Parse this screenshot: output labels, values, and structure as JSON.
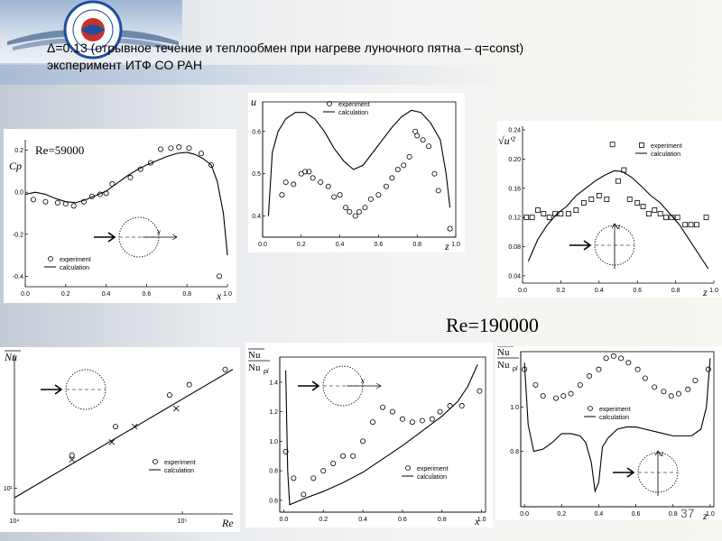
{
  "slide": {
    "title_line1": "Δ=0.13 (отрывное течение и теплообмен при нагреве луночного пятна – q=const)",
    "title_line2": "эксперимент ИТФ СО РАН",
    "re_label": "Re=190000",
    "page_number": "37"
  },
  "legend": {
    "experiment": "experiment",
    "calculation": "calculation"
  },
  "colors": {
    "background": "#f4f4f2",
    "logo_blue": "#1e4f9c",
    "plot_ink": "#000000"
  },
  "chart_data": [
    {
      "id": "cp",
      "type": "scatter",
      "title": "",
      "annotation": "Re=59000",
      "xlabel": "x",
      "ylabel": "Cp",
      "xlim": [
        0,
        1
      ],
      "ylim": [
        -0.45,
        0.25
      ],
      "inset": "circle-x",
      "xticks": [
        0,
        0.2,
        0.4,
        0.6,
        0.8,
        1.0
      ],
      "xtick_labels": [
        "0.0",
        "0.2",
        "0.4",
        "0.6",
        "0.8",
        "1.0"
      ],
      "yticks": [
        0.2,
        0,
        -0.2,
        -0.4
      ],
      "ytick_labels": [
        "0.2",
        "0.0",
        "-0.2",
        "-0.4"
      ],
      "experiment": [
        [
          0.04,
          -0.035
        ],
        [
          0.1,
          -0.045
        ],
        [
          0.16,
          -0.05
        ],
        [
          0.2,
          -0.055
        ],
        [
          0.24,
          -0.065
        ],
        [
          0.29,
          -0.045
        ],
        [
          0.33,
          -0.02
        ],
        [
          0.37,
          -0.01
        ],
        [
          0.4,
          -0.005
        ],
        [
          0.43,
          0.04
        ],
        [
          0.52,
          0.07
        ],
        [
          0.57,
          0.11
        ],
        [
          0.62,
          0.14
        ],
        [
          0.67,
          0.205
        ],
        [
          0.72,
          0.21
        ],
        [
          0.76,
          0.215
        ],
        [
          0.81,
          0.21
        ],
        [
          0.87,
          0.185
        ],
        [
          0.92,
          0.13
        ],
        [
          0.96,
          -0.4
        ]
      ],
      "calculation": [
        [
          0.0,
          -0.01
        ],
        [
          0.05,
          0.0
        ],
        [
          0.1,
          -0.01
        ],
        [
          0.15,
          -0.03
        ],
        [
          0.2,
          -0.045
        ],
        [
          0.25,
          -0.05
        ],
        [
          0.3,
          -0.035
        ],
        [
          0.35,
          -0.015
        ],
        [
          0.4,
          0.005
        ],
        [
          0.45,
          0.04
        ],
        [
          0.5,
          0.075
        ],
        [
          0.55,
          0.105
        ],
        [
          0.6,
          0.13
        ],
        [
          0.65,
          0.15
        ],
        [
          0.7,
          0.17
        ],
        [
          0.75,
          0.185
        ],
        [
          0.8,
          0.19
        ],
        [
          0.84,
          0.18
        ],
        [
          0.88,
          0.16
        ],
        [
          0.92,
          0.13
        ],
        [
          0.95,
          0.05
        ],
        [
          0.98,
          -0.1
        ],
        [
          1.0,
          -0.3
        ]
      ]
    },
    {
      "id": "u",
      "type": "scatter",
      "title": "",
      "xlabel": "z",
      "ylabel": "u",
      "xlim": [
        0,
        1
      ],
      "ylim": [
        0.35,
        0.67
      ],
      "inset": "",
      "xticks": [
        0,
        0.2,
        0.4,
        0.6,
        0.8,
        1.0
      ],
      "xtick_labels": [
        "0.0",
        "0.2",
        "0.4",
        "0.6",
        "0.8",
        "1.0"
      ],
      "yticks": [
        0.4,
        0.5,
        0.6
      ],
      "ytick_labels": [
        "0.4",
        "0.5",
        "0.6"
      ],
      "experiment": [
        [
          0.1,
          0.45
        ],
        [
          0.12,
          0.48
        ],
        [
          0.16,
          0.475
        ],
        [
          0.2,
          0.5
        ],
        [
          0.22,
          0.505
        ],
        [
          0.24,
          0.505
        ],
        [
          0.26,
          0.49
        ],
        [
          0.3,
          0.48
        ],
        [
          0.34,
          0.47
        ],
        [
          0.37,
          0.445
        ],
        [
          0.4,
          0.45
        ],
        [
          0.43,
          0.42
        ],
        [
          0.45,
          0.41
        ],
        [
          0.48,
          0.4
        ],
        [
          0.5,
          0.41
        ],
        [
          0.53,
          0.42
        ],
        [
          0.56,
          0.44
        ],
        [
          0.6,
          0.45
        ],
        [
          0.64,
          0.47
        ],
        [
          0.67,
          0.49
        ],
        [
          0.7,
          0.51
        ],
        [
          0.73,
          0.52
        ],
        [
          0.76,
          0.54
        ],
        [
          0.79,
          0.6
        ],
        [
          0.8,
          0.59
        ],
        [
          0.83,
          0.58
        ],
        [
          0.86,
          0.565
        ],
        [
          0.89,
          0.5
        ],
        [
          0.91,
          0.46
        ],
        [
          0.97,
          0.37
        ]
      ],
      "calculation": [
        [
          0.03,
          0.4
        ],
        [
          0.05,
          0.55
        ],
        [
          0.08,
          0.6
        ],
        [
          0.12,
          0.63
        ],
        [
          0.17,
          0.645
        ],
        [
          0.22,
          0.645
        ],
        [
          0.27,
          0.63
        ],
        [
          0.32,
          0.6
        ],
        [
          0.37,
          0.56
        ],
        [
          0.42,
          0.53
        ],
        [
          0.47,
          0.51
        ],
        [
          0.52,
          0.52
        ],
        [
          0.57,
          0.55
        ],
        [
          0.62,
          0.58
        ],
        [
          0.67,
          0.61
        ],
        [
          0.72,
          0.635
        ],
        [
          0.77,
          0.65
        ],
        [
          0.82,
          0.645
        ],
        [
          0.87,
          0.62
        ],
        [
          0.92,
          0.58
        ],
        [
          0.95,
          0.5
        ],
        [
          0.97,
          0.42
        ]
      ]
    },
    {
      "id": "uprime",
      "type": "scatter",
      "title": "",
      "xlabel": "z",
      "ylabel": "√u'²",
      "xlim": [
        0,
        1
      ],
      "ylim": [
        0.03,
        0.245
      ],
      "inset": "circle-z",
      "xticks": [
        0,
        0.2,
        0.4,
        0.6,
        0.8,
        1.0
      ],
      "xtick_labels": [
        "0.0",
        "0.2",
        "0.4",
        "0.6",
        "0.8",
        "1.0"
      ],
      "yticks": [
        0.04,
        0.08,
        0.12,
        0.16,
        0.2,
        0.24
      ],
      "ytick_labels": [
        "0.04",
        "0.08",
        "0.12",
        "0.16",
        "0.20",
        "0.24"
      ],
      "experiment_marker": "square",
      "experiment": [
        [
          0.02,
          0.12
        ],
        [
          0.05,
          0.12
        ],
        [
          0.08,
          0.13
        ],
        [
          0.11,
          0.125
        ],
        [
          0.14,
          0.12
        ],
        [
          0.17,
          0.125
        ],
        [
          0.2,
          0.125
        ],
        [
          0.24,
          0.125
        ],
        [
          0.28,
          0.13
        ],
        [
          0.32,
          0.14
        ],
        [
          0.36,
          0.145
        ],
        [
          0.4,
          0.15
        ],
        [
          0.44,
          0.145
        ],
        [
          0.47,
          0.22
        ],
        [
          0.5,
          0.17
        ],
        [
          0.53,
          0.185
        ],
        [
          0.56,
          0.145
        ],
        [
          0.6,
          0.14
        ],
        [
          0.63,
          0.135
        ],
        [
          0.66,
          0.125
        ],
        [
          0.69,
          0.13
        ],
        [
          0.72,
          0.125
        ],
        [
          0.75,
          0.12
        ],
        [
          0.78,
          0.12
        ],
        [
          0.81,
          0.12
        ],
        [
          0.85,
          0.11
        ],
        [
          0.88,
          0.11
        ],
        [
          0.91,
          0.11
        ],
        [
          0.96,
          0.12
        ]
      ],
      "calculation": [
        [
          0.03,
          0.06
        ],
        [
          0.08,
          0.09
        ],
        [
          0.13,
          0.11
        ],
        [
          0.18,
          0.125
        ],
        [
          0.23,
          0.135
        ],
        [
          0.28,
          0.15
        ],
        [
          0.33,
          0.16
        ],
        [
          0.38,
          0.17
        ],
        [
          0.43,
          0.178
        ],
        [
          0.48,
          0.184
        ],
        [
          0.52,
          0.183
        ],
        [
          0.57,
          0.175
        ],
        [
          0.62,
          0.163
        ],
        [
          0.67,
          0.15
        ],
        [
          0.72,
          0.14
        ],
        [
          0.77,
          0.125
        ],
        [
          0.82,
          0.11
        ],
        [
          0.87,
          0.09
        ],
        [
          0.92,
          0.07
        ],
        [
          0.97,
          0.05
        ]
      ]
    },
    {
      "id": "nu_re",
      "type": "scatter",
      "title": "",
      "xlabel": "Re",
      "ylabel": "Nu",
      "xscale": "log",
      "yscale": "log",
      "xlim": [
        10000,
        200000
      ],
      "ylim": [
        7.5,
        45
      ],
      "inset": "circle",
      "xticks": [
        10000,
        100000
      ],
      "xtick_labels": [
        "10⁴",
        "10⁵"
      ],
      "yticks": [
        10
      ],
      "ytick_labels": [
        "10¹"
      ],
      "experiment": [
        [
          22000,
          14.5
        ],
        [
          40000,
          20
        ],
        [
          84000,
          28.5
        ],
        [
          110000,
          32
        ],
        [
          180000,
          38
        ]
      ],
      "calculation": [
        [
          10000,
          9
        ],
        [
          200000,
          38
        ]
      ],
      "calculation_markers": [
        [
          22000,
          13.8
        ],
        [
          38000,
          16.8
        ],
        [
          52000,
          20
        ],
        [
          92000,
          24.5
        ]
      ]
    },
    {
      "id": "nu_x",
      "type": "scatter",
      "title": "",
      "xlabel": "x",
      "ylabel": "Nu/Nu_pl",
      "xlim": [
        -0.02,
        1.02
      ],
      "ylim": [
        0.52,
        1.57
      ],
      "inset": "circle-x",
      "xticks": [
        0,
        0.2,
        0.4,
        0.6,
        0.8,
        1.0
      ],
      "xtick_labels": [
        "0.0",
        "0.2",
        "0.4",
        "0.6",
        "0.8",
        "1.0"
      ],
      "yticks": [
        0.6,
        0.8,
        1.0,
        1.2,
        1.4
      ],
      "ytick_labels": [
        "0.6",
        "0.8",
        "1.0",
        "1.2",
        "1.4"
      ],
      "experiment": [
        [
          0.01,
          0.93
        ],
        [
          0.05,
          0.75
        ],
        [
          0.1,
          0.64
        ],
        [
          0.15,
          0.75
        ],
        [
          0.2,
          0.8
        ],
        [
          0.25,
          0.85
        ],
        [
          0.3,
          0.9
        ],
        [
          0.35,
          0.9
        ],
        [
          0.4,
          1.0
        ],
        [
          0.45,
          1.13
        ],
        [
          0.5,
          1.23
        ],
        [
          0.55,
          1.2
        ],
        [
          0.6,
          1.15
        ],
        [
          0.65,
          1.13
        ],
        [
          0.7,
          1.14
        ],
        [
          0.75,
          1.15
        ],
        [
          0.79,
          1.2
        ],
        [
          0.84,
          1.24
        ],
        [
          0.9,
          1.24
        ],
        [
          0.99,
          1.34
        ]
      ],
      "calculation": [
        [
          0.01,
          1.48
        ],
        [
          0.02,
          0.8
        ],
        [
          0.03,
          0.57
        ],
        [
          0.1,
          0.61
        ],
        [
          0.2,
          0.66
        ],
        [
          0.3,
          0.72
        ],
        [
          0.4,
          0.79
        ],
        [
          0.5,
          0.88
        ],
        [
          0.6,
          0.97
        ],
        [
          0.7,
          1.07
        ],
        [
          0.8,
          1.17
        ],
        [
          0.88,
          1.27
        ],
        [
          0.93,
          1.37
        ],
        [
          0.96,
          1.46
        ],
        [
          0.98,
          1.52
        ]
      ]
    },
    {
      "id": "nu_z",
      "type": "scatter",
      "title": "",
      "xlabel": "z",
      "ylabel": "Nu/Nu_pl",
      "xlim": [
        -0.02,
        1.02
      ],
      "ylim": [
        0.55,
        1.25
      ],
      "inset": "circle-z",
      "xticks": [
        0,
        0.2,
        0.4,
        0.6,
        0.8,
        1.0
      ],
      "xtick_labels": [
        "0.0",
        "0.2",
        "0.4",
        "0.6",
        "0.8",
        "1.0"
      ],
      "yticks": [
        0.8,
        1.0
      ],
      "ytick_labels": [
        "0.8",
        "1.0"
      ],
      "experiment": [
        [
          0.0,
          1.17
        ],
        [
          0.06,
          1.1
        ],
        [
          0.1,
          1.05
        ],
        [
          0.17,
          1.04
        ],
        [
          0.21,
          1.05
        ],
        [
          0.25,
          1.06
        ],
        [
          0.3,
          1.1
        ],
        [
          0.35,
          1.14
        ],
        [
          0.4,
          1.17
        ],
        [
          0.44,
          1.22
        ],
        [
          0.48,
          1.23
        ],
        [
          0.52,
          1.22
        ],
        [
          0.56,
          1.2
        ],
        [
          0.61,
          1.17
        ],
        [
          0.65,
          1.13
        ],
        [
          0.7,
          1.09
        ],
        [
          0.75,
          1.07
        ],
        [
          0.79,
          1.05
        ],
        [
          0.83,
          1.06
        ],
        [
          0.88,
          1.08
        ],
        [
          0.92,
          1.12
        ],
        [
          0.99,
          1.17
        ]
      ],
      "calculation": [
        [
          0.0,
          1.2
        ],
        [
          0.02,
          0.92
        ],
        [
          0.05,
          0.8
        ],
        [
          0.1,
          0.81
        ],
        [
          0.15,
          0.84
        ],
        [
          0.2,
          0.88
        ],
        [
          0.25,
          0.88
        ],
        [
          0.3,
          0.87
        ],
        [
          0.33,
          0.84
        ],
        [
          0.36,
          0.75
        ],
        [
          0.38,
          0.62
        ],
        [
          0.4,
          0.66
        ],
        [
          0.42,
          0.82
        ],
        [
          0.45,
          0.86
        ],
        [
          0.5,
          0.9
        ],
        [
          0.55,
          0.91
        ],
        [
          0.6,
          0.91
        ],
        [
          0.65,
          0.9
        ],
        [
          0.7,
          0.89
        ],
        [
          0.75,
          0.88
        ],
        [
          0.8,
          0.87
        ],
        [
          0.85,
          0.87
        ],
        [
          0.9,
          0.87
        ],
        [
          0.95,
          0.9
        ],
        [
          0.98,
          1.0
        ],
        [
          1.0,
          1.22
        ]
      ]
    }
  ]
}
